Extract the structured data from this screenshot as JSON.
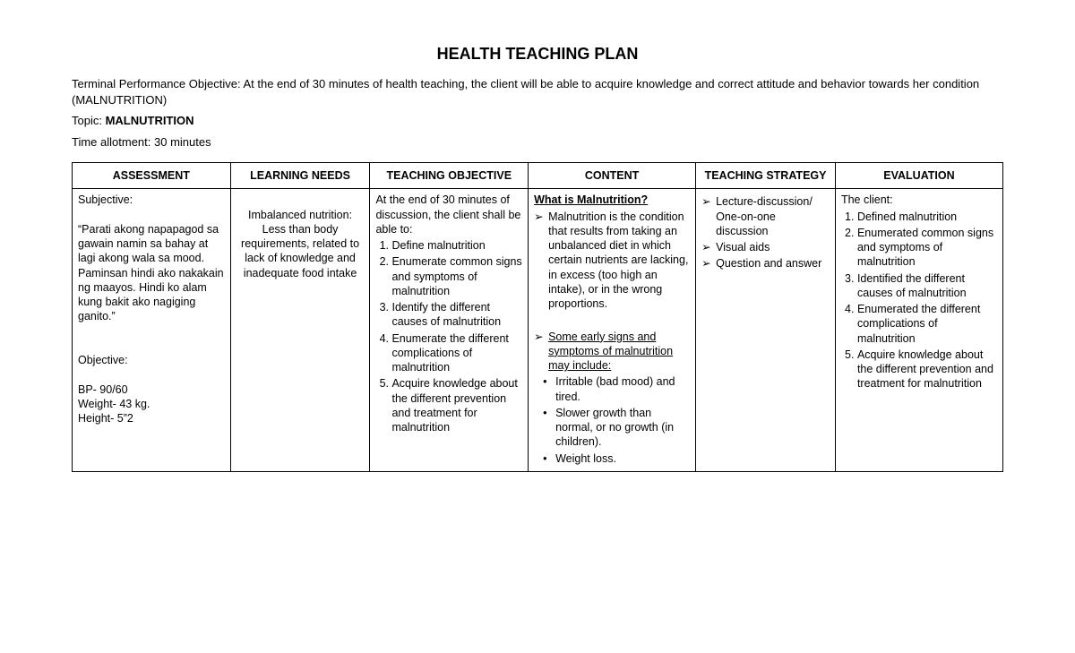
{
  "title": "HEALTH TEACHING PLAN",
  "tpo_label": "Terminal Performance Objective: ",
  "tpo_text": "At the end of 30 minutes of health teaching, the client will be able to acquire knowledge and correct attitude and behavior towards her condition (MALNUTRITION)",
  "topic_label": "Topic: ",
  "topic_value": "MALNUTRITION",
  "time_label": "Time allotment: ",
  "time_value": "30 minutes",
  "columns": {
    "assessment": "ASSESSMENT",
    "needs": "LEARNING NEEDS",
    "objective": "TEACHING OBJECTIVE",
    "content": "CONTENT",
    "strategy": "TEACHING STRATEGY",
    "evaluation": "EVALUATION"
  },
  "assessment": {
    "subjective_label": "Subjective:",
    "subjective_quote": "“Parati akong napapagod sa gawain namin sa bahay at lagi akong wala sa mood. Paminsan hindi ako nakakain ng maayos. Hindi ko alam kung bakit ako nagiging ganito.”",
    "objective_label": "Objective:",
    "bp": "BP- 90/60",
    "weight": "Weight- 43 kg.",
    "height": "Height- 5”2"
  },
  "learning_needs": "Imbalanced nutrition: Less than body requirements, related to lack of knowledge and inadequate food intake",
  "teaching_objective": {
    "lead": "At the end of 30 minutes of discussion, the client shall be able to:",
    "items": [
      "Define malnutrition",
      "Enumerate common signs and symptoms of malnutrition",
      "Identify the different causes of malnutrition",
      "Enumerate the different complications of malnutrition",
      "Acquire knowledge about the different prevention and treatment for malnutrition"
    ]
  },
  "content": {
    "heading": "What is Malnutrition?",
    "definition": "Malnutrition is the condition that results from taking an unbalanced diet in which certain nutrients are lacking, in excess (too high an intake), or in the wrong proportions.",
    "signs_heading": "Some early signs and symptoms of malnutrition may include:",
    "signs": [
      "Irritable (bad mood) and tired.",
      "Slower growth than normal, or no growth (in children).",
      "Weight loss."
    ]
  },
  "strategy": {
    "items": [
      "Lecture-discussion/ One-on-one discussion",
      "Visual aids",
      "Question and answer"
    ]
  },
  "evaluation": {
    "lead": "The client:",
    "items": [
      "Defined malnutrition",
      "Enumerated common signs and symptoms of malnutrition",
      "Identified the different causes of malnutrition",
      "Enumerated the different complications of malnutrition",
      "Acquire knowledge about the different prevention and treatment for malnutrition"
    ]
  },
  "style": {
    "background_color": "#ffffff",
    "text_color": "#000000",
    "border_color": "#000000",
    "font_family": "Arial, Helvetica, sans-serif",
    "title_fontsize": 18,
    "body_fontsize": 13,
    "cell_fontsize": 12.5,
    "column_widths_pct": [
      17,
      15,
      17,
      18,
      15,
      18
    ]
  }
}
